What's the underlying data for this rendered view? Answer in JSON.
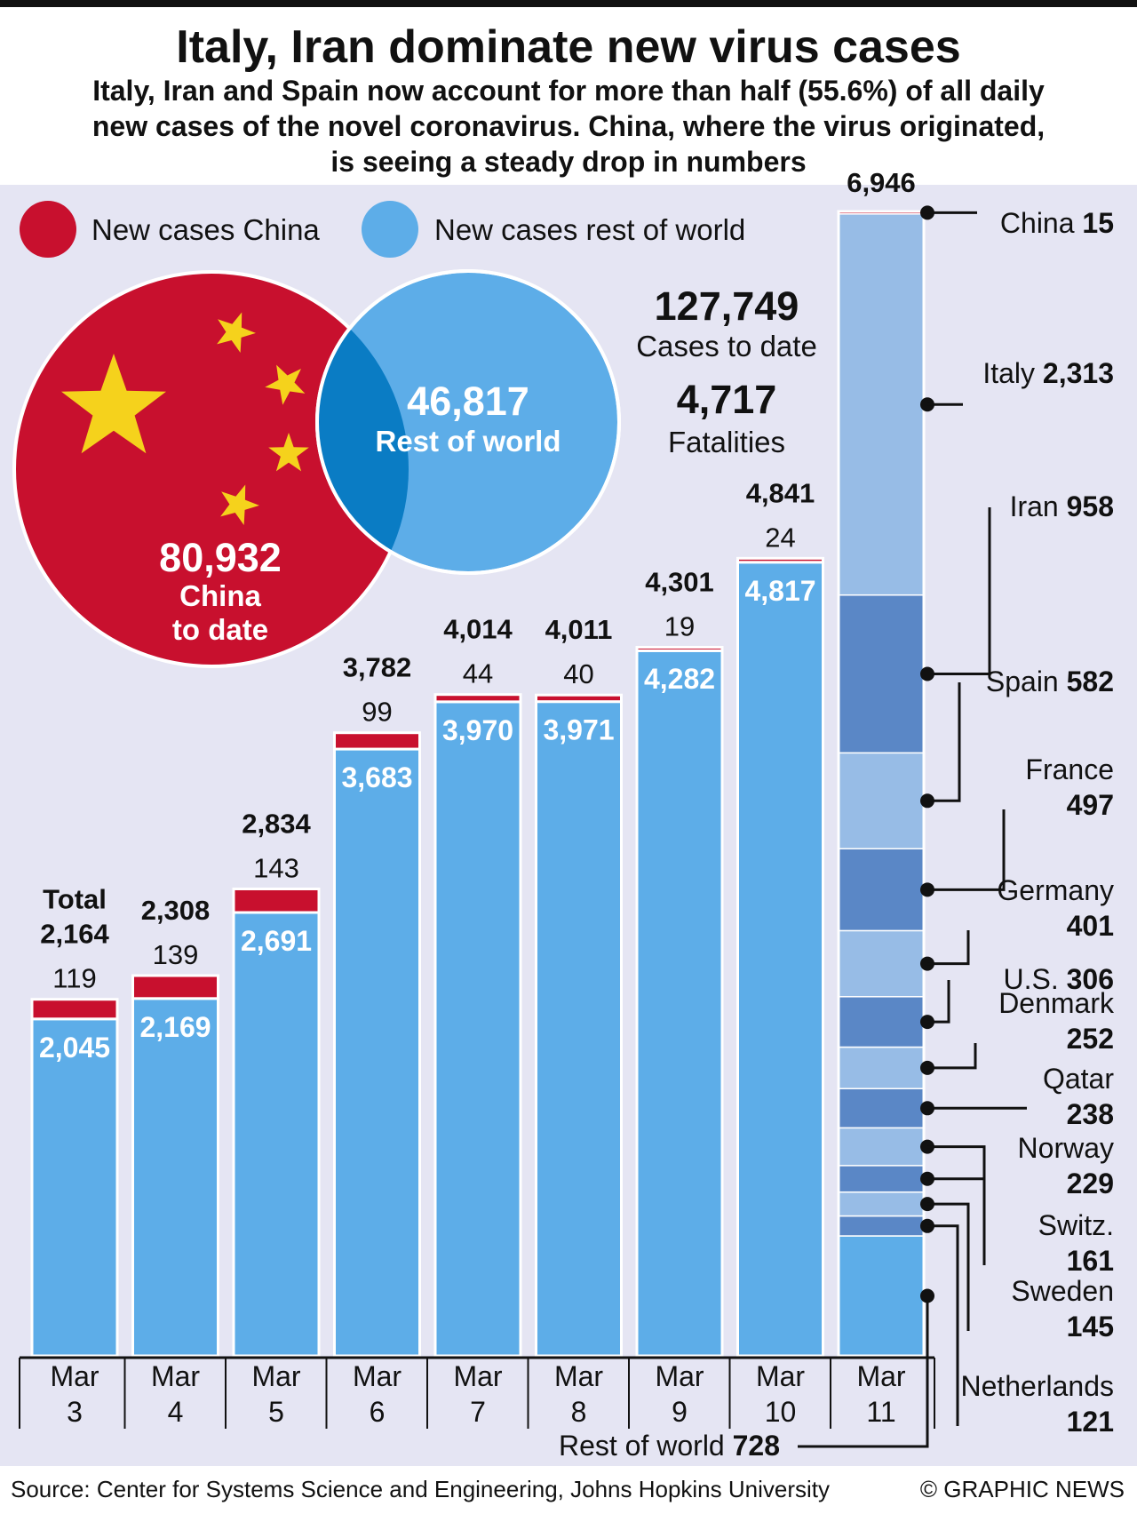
{
  "header": {
    "title": "Italy, Iran dominate new virus cases",
    "subtitle_lines": [
      "Italy, Iran and Spain now account for more than half (55.6%) of all daily",
      "new cases of the novel coronavirus. China, where the virus originated,",
      "is seeing a steady drop in numbers"
    ]
  },
  "legend": {
    "china": "New cases China",
    "rest": "New cases rest of world"
  },
  "venn": {
    "china_value": "80,932",
    "china_label_lines": [
      "China",
      "to date"
    ],
    "rest_value": "46,817",
    "rest_label": "Rest of world"
  },
  "totals": {
    "cases_value": "127,749",
    "cases_label": "Cases to date",
    "fatalities_value": "4,717",
    "fatalities_label": "Fatalities"
  },
  "total_label": "Total",
  "colors": {
    "china_red": "#c8102e",
    "rest_blue": "#5dade8",
    "light_blue": "#97bce6",
    "dark_blue": "#5a87c6",
    "overlap_blue": "#0a7cc4",
    "background": "#e5e5f3",
    "star_yellow": "#f5d21c"
  },
  "chart_data": {
    "type": "bar",
    "stacked": true,
    "categories": [
      [
        "Mar",
        "3"
      ],
      [
        "Mar",
        "4"
      ],
      [
        "Mar",
        "5"
      ],
      [
        "Mar",
        "6"
      ],
      [
        "Mar",
        "7"
      ],
      [
        "Mar",
        "8"
      ],
      [
        "Mar",
        "9"
      ],
      [
        "Mar",
        "10"
      ],
      [
        "Mar",
        "11"
      ]
    ],
    "series": [
      {
        "name": "New cases rest of world",
        "values": [
          2045,
          2169,
          2691,
          3683,
          3970,
          3971,
          4282,
          4817,
          6931
        ],
        "labels": [
          "2,045",
          "2,169",
          "2,691",
          "3,683",
          "3,970",
          "3,971",
          "4,282",
          "4,817",
          ""
        ]
      },
      {
        "name": "New cases China",
        "values": [
          119,
          139,
          143,
          99,
          44,
          40,
          19,
          24,
          15
        ],
        "labels": [
          "119",
          "139",
          "143",
          "99",
          "44",
          "40",
          "19",
          "24",
          ""
        ]
      }
    ],
    "totals": [
      2164,
      2308,
      2834,
      3782,
      4014,
      4011,
      4301,
      4841,
      6946
    ],
    "total_labels": [
      "2,164",
      "2,308",
      "2,834",
      "3,782",
      "4,014",
      "4,011",
      "4,301",
      "4,841",
      "6,946"
    ],
    "ylim": [
      0,
      7000
    ],
    "breakdown_mar11": [
      {
        "name": "China",
        "value": 15,
        "label": "15",
        "color": "#c8102e"
      },
      {
        "name": "Italy",
        "value": 2313,
        "label": "2,313",
        "color": "#97bce6"
      },
      {
        "name": "Iran",
        "value": 958,
        "label": "958",
        "color": "#5a87c6"
      },
      {
        "name": "Spain",
        "value": 582,
        "label": "582",
        "color": "#97bce6"
      },
      {
        "name": "France",
        "value": 497,
        "label": "497",
        "color": "#5a87c6"
      },
      {
        "name": "Germany",
        "value": 401,
        "label": "401",
        "color": "#97bce6"
      },
      {
        "name": "U.S.",
        "value": 306,
        "label": "306",
        "color": "#5a87c6"
      },
      {
        "name": "Denmark",
        "value": 252,
        "label": "252",
        "color": "#97bce6"
      },
      {
        "name": "Qatar",
        "value": 238,
        "label": "238",
        "color": "#5a87c6"
      },
      {
        "name": "Norway",
        "value": 229,
        "label": "229",
        "color": "#97bce6"
      },
      {
        "name": "Switz.",
        "value": 161,
        "label": "161",
        "color": "#5a87c6"
      },
      {
        "name": "Sweden",
        "value": 145,
        "label": "145",
        "color": "#97bce6"
      },
      {
        "name": "Netherlands",
        "value": 121,
        "label": "121",
        "color": "#5a87c6"
      },
      {
        "name": "Rest of world",
        "value": 728,
        "label": "728",
        "color": "#5dade8"
      }
    ]
  },
  "footer": {
    "source": "Source: Center for Systems Science and Engineering, Johns Hopkins University",
    "credit": "© GRAPHIC NEWS"
  }
}
